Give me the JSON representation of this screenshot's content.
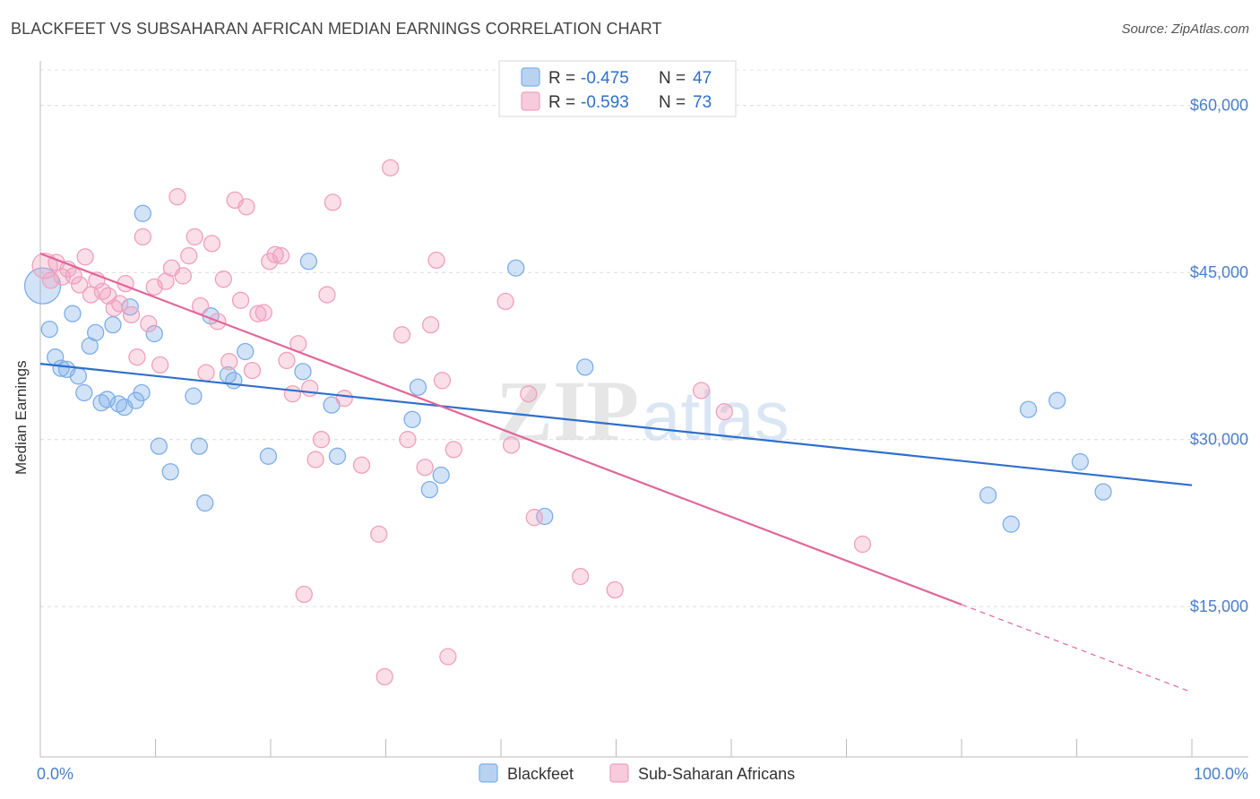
{
  "title": "BLACKFEET VS SUBSAHARAN AFRICAN MEDIAN EARNINGS CORRELATION CHART",
  "source": "Source: ZipAtlas.com",
  "watermark": {
    "zip": "ZIP",
    "atlas": "atlas"
  },
  "legend_top": {
    "r_label": "R =",
    "n_label": "N =",
    "rows": [
      {
        "r": "-0.475",
        "n": "47",
        "color": "#7eaee8"
      },
      {
        "r": "-0.593",
        "n": "73",
        "color": "#f0a0bd"
      }
    ]
  },
  "chart_data": {
    "type": "scatter",
    "title": "BLACKFEET VS SUBSAHARAN AFRICAN MEDIAN EARNINGS CORRELATION CHART",
    "xlabel": "",
    "ylabel": "Median Earnings",
    "xlim": [
      0,
      100
    ],
    "ylim": [
      1500,
      64000
    ],
    "x_tick_labels": {
      "min": "0.0%",
      "max": "100.0%"
    },
    "y_ticks": [
      {
        "value": 15000,
        "label": "$15,000"
      },
      {
        "value": 30000,
        "label": "$30,000"
      },
      {
        "value": 45000,
        "label": "$45,000"
      },
      {
        "value": 60000,
        "label": "$60,000"
      }
    ],
    "grid": "horizontal dashed",
    "legend_placement": "bottom-center",
    "series": [
      {
        "name": "Blackfeet",
        "color": "#7eaee8",
        "line_color": "#2f6fcb",
        "trend": {
          "x": [
            0,
            100
          ],
          "y": [
            36800,
            25900
          ],
          "dashed_from": null
        },
        "points": [
          [
            0.2,
            43800
          ],
          [
            0.8,
            39900
          ],
          [
            1.3,
            37400
          ],
          [
            1.8,
            36400
          ],
          [
            2.3,
            36300
          ],
          [
            2.8,
            41300
          ],
          [
            3.3,
            35700
          ],
          [
            3.8,
            34200
          ],
          [
            4.3,
            38400
          ],
          [
            4.8,
            39600
          ],
          [
            5.3,
            33300
          ],
          [
            5.8,
            33600
          ],
          [
            6.3,
            40300
          ],
          [
            6.8,
            33200
          ],
          [
            7.3,
            32900
          ],
          [
            7.8,
            41900
          ],
          [
            8.3,
            33500
          ],
          [
            8.8,
            34200
          ],
          [
            8.9,
            50300
          ],
          [
            9.9,
            39500
          ],
          [
            10.3,
            29400
          ],
          [
            11.3,
            27100
          ],
          [
            13.3,
            33900
          ],
          [
            13.8,
            29400
          ],
          [
            14.3,
            24300
          ],
          [
            14.8,
            41100
          ],
          [
            16.3,
            35800
          ],
          [
            16.8,
            35300
          ],
          [
            17.8,
            37900
          ],
          [
            19.8,
            28500
          ],
          [
            22.8,
            36100
          ],
          [
            23.3,
            46000
          ],
          [
            25.3,
            33100
          ],
          [
            25.8,
            28500
          ],
          [
            32.3,
            31800
          ],
          [
            32.8,
            34700
          ],
          [
            33.8,
            25500
          ],
          [
            34.8,
            26800
          ],
          [
            41.3,
            45400
          ],
          [
            43.8,
            23100
          ],
          [
            47.3,
            36500
          ],
          [
            82.3,
            25000
          ],
          [
            84.3,
            22400
          ],
          [
            85.8,
            32700
          ],
          [
            88.3,
            33500
          ],
          [
            90.3,
            28000
          ],
          [
            92.3,
            25300
          ]
        ]
      },
      {
        "name": "Sub-Saharan Africans",
        "color": "#f0a0bd",
        "line_color": "#e0679a",
        "trend": {
          "x": [
            0,
            100
          ],
          "y": [
            46700,
            7300
          ],
          "dashed_from": 80
        },
        "points": [
          [
            0.4,
            45600
          ],
          [
            0.9,
            44300
          ],
          [
            1.4,
            45900
          ],
          [
            1.9,
            44600
          ],
          [
            2.4,
            45300
          ],
          [
            2.9,
            44700
          ],
          [
            3.4,
            43900
          ],
          [
            3.9,
            46400
          ],
          [
            4.4,
            43000
          ],
          [
            4.9,
            44300
          ],
          [
            5.4,
            43300
          ],
          [
            5.9,
            42900
          ],
          [
            6.4,
            41800
          ],
          [
            6.9,
            42200
          ],
          [
            7.4,
            44000
          ],
          [
            7.9,
            41200
          ],
          [
            8.4,
            37400
          ],
          [
            8.9,
            48200
          ],
          [
            9.4,
            40400
          ],
          [
            9.9,
            43700
          ],
          [
            10.4,
            36700
          ],
          [
            10.9,
            44200
          ],
          [
            11.4,
            45400
          ],
          [
            11.9,
            51800
          ],
          [
            12.4,
            44700
          ],
          [
            12.9,
            46500
          ],
          [
            13.4,
            48200
          ],
          [
            13.9,
            42000
          ],
          [
            14.4,
            36000
          ],
          [
            14.9,
            47600
          ],
          [
            15.4,
            40600
          ],
          [
            15.9,
            44400
          ],
          [
            16.4,
            37000
          ],
          [
            16.9,
            51500
          ],
          [
            17.4,
            42500
          ],
          [
            17.9,
            50900
          ],
          [
            18.4,
            36200
          ],
          [
            18.9,
            41300
          ],
          [
            19.4,
            41400
          ],
          [
            19.9,
            46000
          ],
          [
            20.4,
            46600
          ],
          [
            20.9,
            46500
          ],
          [
            21.4,
            37100
          ],
          [
            21.9,
            34100
          ],
          [
            22.4,
            38600
          ],
          [
            22.9,
            16100
          ],
          [
            23.4,
            34600
          ],
          [
            23.9,
            28200
          ],
          [
            24.4,
            30000
          ],
          [
            24.9,
            43000
          ],
          [
            25.4,
            51300
          ],
          [
            26.4,
            33700
          ],
          [
            27.9,
            27700
          ],
          [
            29.4,
            21500
          ],
          [
            29.9,
            8700
          ],
          [
            30.4,
            54400
          ],
          [
            31.4,
            39400
          ],
          [
            31.9,
            30000
          ],
          [
            33.4,
            27500
          ],
          [
            33.9,
            40300
          ],
          [
            34.4,
            46100
          ],
          [
            34.9,
            35300
          ],
          [
            35.4,
            10500
          ],
          [
            35.9,
            29100
          ],
          [
            40.4,
            42400
          ],
          [
            40.9,
            29500
          ],
          [
            42.4,
            34100
          ],
          [
            42.9,
            23000
          ],
          [
            46.9,
            17700
          ],
          [
            49.9,
            16500
          ],
          [
            57.4,
            34400
          ],
          [
            59.4,
            32500
          ],
          [
            71.4,
            20600
          ]
        ]
      }
    ]
  }
}
